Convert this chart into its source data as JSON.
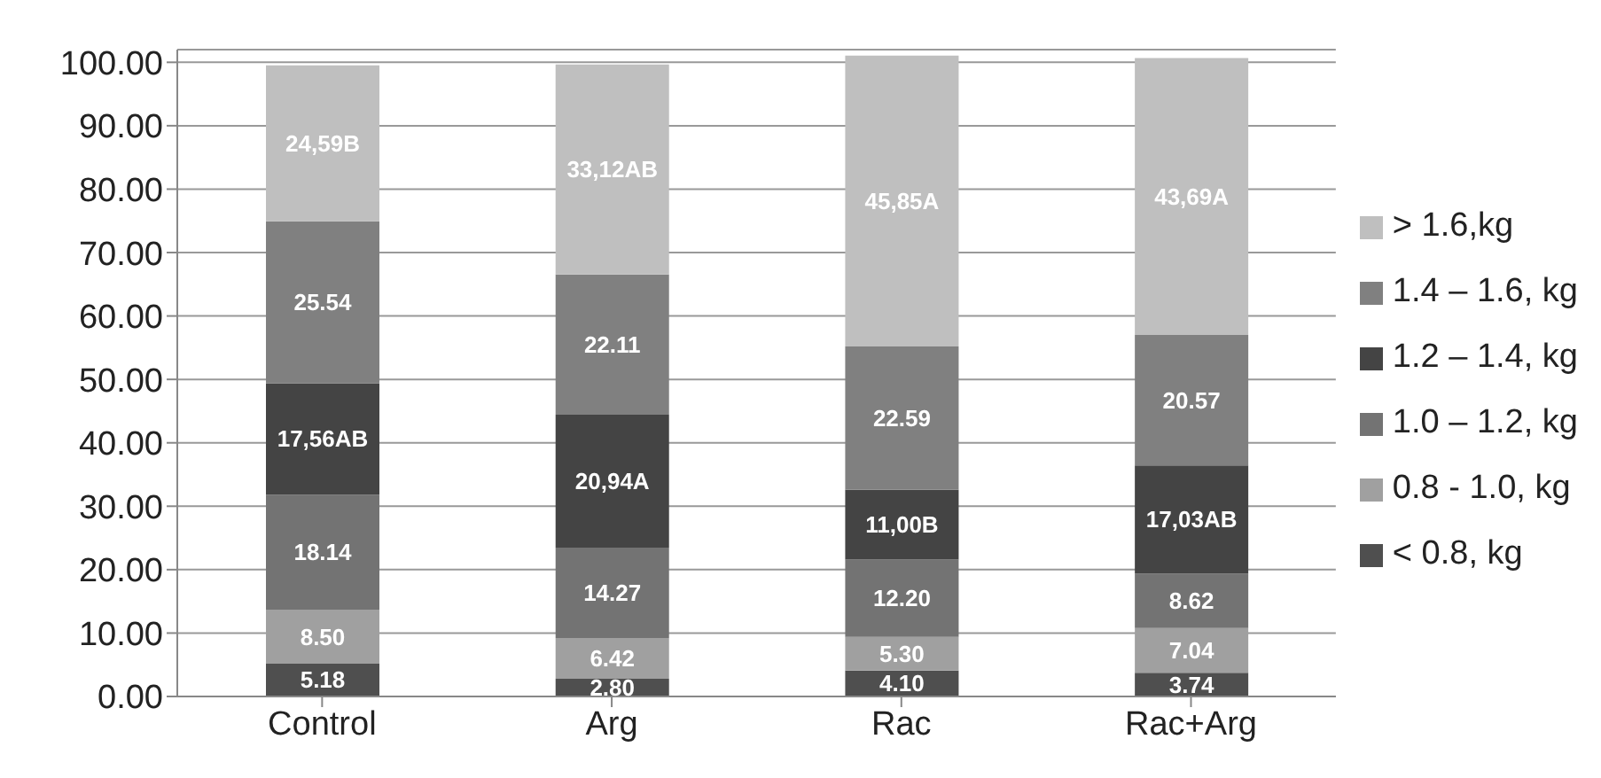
{
  "chart_data": {
    "type": "bar",
    "stacked": true,
    "categories": [
      "Control",
      "Arg",
      "Rac",
      "Rac+Arg"
    ],
    "series": [
      {
        "name": "< 0.8, kg",
        "color": "#4f4f4f",
        "values": [
          5.18,
          2.8,
          4.1,
          3.74
        ],
        "value_labels": [
          "5.18",
          "2.80",
          "4.10",
          "3.74"
        ]
      },
      {
        "name": "0.8 - 1.0, kg",
        "color": "#a0a0a0",
        "values": [
          8.5,
          6.42,
          5.3,
          7.04
        ],
        "value_labels": [
          "8.50",
          "6.42",
          "5.30",
          "7.04"
        ]
      },
      {
        "name": "1.0 – 1.2, kg",
        "color": "#737373",
        "values": [
          18.14,
          14.27,
          12.2,
          8.62
        ],
        "value_labels": [
          "18.14",
          "14.27",
          "12.20",
          "8.62"
        ]
      },
      {
        "name": "1.2 – 1.4, kg",
        "color": "#444444",
        "values": [
          17.56,
          20.94,
          11.0,
          17.03
        ],
        "value_labels": [
          "17,56AB",
          "20,94A",
          "11,00B",
          "17,03AB"
        ]
      },
      {
        "name": "1.4 – 1.6, kg",
        "color": "#808080",
        "values": [
          25.54,
          22.11,
          22.59,
          20.57
        ],
        "value_labels": [
          "25.54",
          "22.11",
          "22.59",
          "20.57"
        ]
      },
      {
        "name": "> 1.6,kg",
        "color": "#bfbfbf",
        "values": [
          24.59,
          33.12,
          45.85,
          43.69
        ],
        "value_labels": [
          "24,59B",
          "33,12AB",
          "45,85A",
          "43,69A"
        ]
      }
    ],
    "ylim": [
      0,
      102
    ],
    "yticks": [
      {
        "value": 0,
        "label": "0.00"
      },
      {
        "value": 10,
        "label": "10.00"
      },
      {
        "value": 20,
        "label": "20.00"
      },
      {
        "value": 30,
        "label": "30.00"
      },
      {
        "value": 40,
        "label": "40.00"
      },
      {
        "value": 50,
        "label": "50.00"
      },
      {
        "value": 60,
        "label": "60.00"
      },
      {
        "value": 70,
        "label": "70.00"
      },
      {
        "value": 80,
        "label": "80.00"
      },
      {
        "value": 90,
        "label": "90.00"
      },
      {
        "value": 100,
        "label": "100.00"
      }
    ],
    "grid": "y",
    "legend": "right"
  }
}
